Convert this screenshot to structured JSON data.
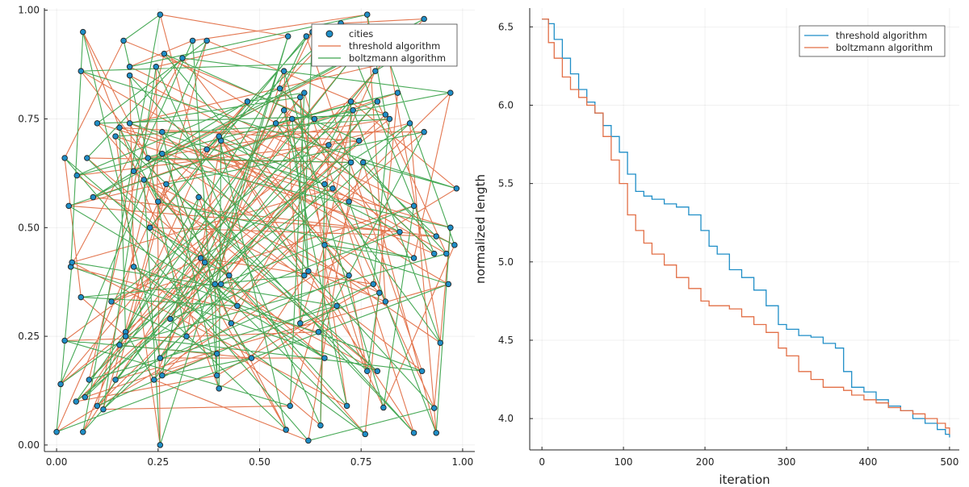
{
  "chart_data": [
    {
      "type": "scatter",
      "panel": "left",
      "title": "",
      "xlabel": "",
      "ylabel": "",
      "xlim": [
        -0.03,
        1.03
      ],
      "ylim": [
        -0.015,
        1.005
      ],
      "xticks": [
        0.0,
        0.25,
        0.5,
        0.75,
        1.0
      ],
      "xtick_labels": [
        "0.00",
        "0.25",
        "0.50",
        "0.75",
        "1.00"
      ],
      "yticks": [
        0.0,
        0.25,
        0.5,
        0.75,
        1.0
      ],
      "ytick_labels": [
        "0.00",
        "0.25",
        "0.50",
        "0.75",
        "1.00"
      ],
      "grid": true,
      "legend_position": "top-right",
      "legend": [
        "cities",
        "threshold algorithm",
        "boltzmann algorithm"
      ],
      "colors": {
        "cities": "#1f8ec7",
        "threshold": "#e26f46",
        "boltzmann": "#3da44d"
      },
      "cities": [
        [
          0.0,
          0.03
        ],
        [
          0.065,
          0.03
        ],
        [
          0.255,
          0.0
        ],
        [
          0.62,
          0.01
        ],
        [
          0.565,
          0.035
        ],
        [
          0.65,
          0.045
        ],
        [
          0.76,
          0.025
        ],
        [
          0.88,
          0.028
        ],
        [
          0.935,
          0.028
        ],
        [
          0.1,
          0.09
        ],
        [
          0.115,
          0.082
        ],
        [
          0.048,
          0.1
        ],
        [
          0.07,
          0.11
        ],
        [
          0.08,
          0.15
        ],
        [
          0.145,
          0.15
        ],
        [
          0.01,
          0.14
        ],
        [
          0.24,
          0.15
        ],
        [
          0.26,
          0.16
        ],
        [
          0.395,
          0.16
        ],
        [
          0.4,
          0.13
        ],
        [
          0.575,
          0.09
        ],
        [
          0.715,
          0.09
        ],
        [
          0.805,
          0.086
        ],
        [
          0.93,
          0.085
        ],
        [
          0.765,
          0.17
        ],
        [
          0.79,
          0.17
        ],
        [
          0.9,
          0.17
        ],
        [
          0.945,
          0.235
        ],
        [
          0.02,
          0.24
        ],
        [
          0.155,
          0.23
        ],
        [
          0.17,
          0.26
        ],
        [
          0.17,
          0.25
        ],
        [
          0.255,
          0.2
        ],
        [
          0.32,
          0.25
        ],
        [
          0.395,
          0.21
        ],
        [
          0.48,
          0.2
        ],
        [
          0.66,
          0.2
        ],
        [
          0.645,
          0.26
        ],
        [
          0.6,
          0.28
        ],
        [
          0.28,
          0.29
        ],
        [
          0.43,
          0.28
        ],
        [
          0.445,
          0.32
        ],
        [
          0.135,
          0.33
        ],
        [
          0.06,
          0.34
        ],
        [
          0.81,
          0.33
        ],
        [
          0.69,
          0.32
        ],
        [
          0.78,
          0.37
        ],
        [
          0.795,
          0.35
        ],
        [
          0.965,
          0.37
        ],
        [
          0.72,
          0.39
        ],
        [
          0.035,
          0.41
        ],
        [
          0.038,
          0.42
        ],
        [
          0.19,
          0.41
        ],
        [
          0.355,
          0.43
        ],
        [
          0.365,
          0.42
        ],
        [
          0.39,
          0.37
        ],
        [
          0.405,
          0.37
        ],
        [
          0.425,
          0.39
        ],
        [
          0.61,
          0.39
        ],
        [
          0.62,
          0.4
        ],
        [
          0.66,
          0.46
        ],
        [
          0.88,
          0.43
        ],
        [
          0.93,
          0.44
        ],
        [
          0.935,
          0.48
        ],
        [
          0.97,
          0.5
        ],
        [
          0.98,
          0.46
        ],
        [
          0.96,
          0.44
        ],
        [
          0.845,
          0.49
        ],
        [
          0.88,
          0.55
        ],
        [
          0.985,
          0.59
        ],
        [
          0.03,
          0.55
        ],
        [
          0.09,
          0.57
        ],
        [
          0.23,
          0.5
        ],
        [
          0.25,
          0.56
        ],
        [
          0.35,
          0.57
        ],
        [
          0.66,
          0.6
        ],
        [
          0.68,
          0.59
        ],
        [
          0.72,
          0.56
        ],
        [
          0.725,
          0.65
        ],
        [
          0.755,
          0.65
        ],
        [
          0.67,
          0.69
        ],
        [
          0.745,
          0.7
        ],
        [
          0.58,
          0.75
        ],
        [
          0.635,
          0.75
        ],
        [
          0.54,
          0.74
        ],
        [
          0.05,
          0.62
        ],
        [
          0.02,
          0.66
        ],
        [
          0.075,
          0.66
        ],
        [
          0.19,
          0.63
        ],
        [
          0.215,
          0.61
        ],
        [
          0.225,
          0.66
        ],
        [
          0.26,
          0.67
        ],
        [
          0.27,
          0.6
        ],
        [
          0.37,
          0.68
        ],
        [
          0.405,
          0.7
        ],
        [
          0.4,
          0.71
        ],
        [
          0.1,
          0.74
        ],
        [
          0.145,
          0.71
        ],
        [
          0.155,
          0.73
        ],
        [
          0.18,
          0.74
        ],
        [
          0.26,
          0.72
        ],
        [
          0.47,
          0.79
        ],
        [
          0.55,
          0.82
        ],
        [
          0.56,
          0.77
        ],
        [
          0.6,
          0.8
        ],
        [
          0.61,
          0.81
        ],
        [
          0.725,
          0.79
        ],
        [
          0.73,
          0.77
        ],
        [
          0.79,
          0.79
        ],
        [
          0.81,
          0.76
        ],
        [
          0.82,
          0.75
        ],
        [
          0.84,
          0.81
        ],
        [
          0.87,
          0.74
        ],
        [
          0.905,
          0.72
        ],
        [
          0.97,
          0.81
        ],
        [
          0.06,
          0.86
        ],
        [
          0.18,
          0.85
        ],
        [
          0.18,
          0.87
        ],
        [
          0.245,
          0.87
        ],
        [
          0.265,
          0.9
        ],
        [
          0.31,
          0.89
        ],
        [
          0.335,
          0.93
        ],
        [
          0.37,
          0.93
        ],
        [
          0.56,
          0.86
        ],
        [
          0.57,
          0.94
        ],
        [
          0.615,
          0.94
        ],
        [
          0.63,
          0.95
        ],
        [
          0.72,
          0.88
        ],
        [
          0.785,
          0.86
        ],
        [
          0.82,
          0.88
        ],
        [
          0.065,
          0.95
        ],
        [
          0.165,
          0.93
        ],
        [
          0.255,
          0.99
        ],
        [
          0.7,
          0.97
        ],
        [
          0.765,
          0.99
        ],
        [
          0.905,
          0.98
        ]
      ]
    },
    {
      "type": "line",
      "panel": "right",
      "title": "",
      "xlabel": "iteration",
      "ylabel": "normalized length",
      "xlim": [
        -15,
        512
      ],
      "ylim": [
        3.8,
        6.62
      ],
      "xticks": [
        0,
        100,
        200,
        300,
        400,
        500
      ],
      "xtick_labels": [
        "0",
        "100",
        "200",
        "300",
        "400",
        "500"
      ],
      "yticks": [
        4.0,
        4.5,
        5.0,
        5.5,
        6.0,
        6.5
      ],
      "ytick_labels": [
        "4.0",
        "4.5",
        "5.0",
        "5.5",
        "6.0",
        "6.5"
      ],
      "grid": true,
      "legend_position": "top-right",
      "step": true,
      "series": [
        {
          "name": "threshold algorithm",
          "color": "#1f8ec7",
          "x": [
            0,
            8,
            15,
            25,
            35,
            45,
            55,
            65,
            75,
            85,
            95,
            105,
            115,
            125,
            135,
            150,
            165,
            180,
            195,
            205,
            215,
            230,
            245,
            260,
            275,
            290,
            300,
            315,
            330,
            345,
            360,
            370,
            380,
            395,
            410,
            425,
            440,
            455,
            470,
            485,
            495,
            500
          ],
          "values": [
            6.55,
            6.52,
            6.42,
            6.3,
            6.2,
            6.1,
            6.02,
            5.95,
            5.87,
            5.8,
            5.7,
            5.56,
            5.45,
            5.42,
            5.4,
            5.37,
            5.35,
            5.3,
            5.2,
            5.1,
            5.05,
            4.95,
            4.9,
            4.82,
            4.72,
            4.6,
            4.57,
            4.53,
            4.52,
            4.48,
            4.45,
            4.3,
            4.2,
            4.17,
            4.12,
            4.08,
            4.05,
            4.0,
            3.97,
            3.93,
            3.9,
            3.88
          ]
        },
        {
          "name": "boltzmann algorithm",
          "color": "#e26f46",
          "x": [
            0,
            8,
            15,
            25,
            35,
            45,
            55,
            65,
            75,
            85,
            95,
            105,
            115,
            125,
            135,
            150,
            165,
            180,
            195,
            205,
            215,
            230,
            245,
            260,
            275,
            290,
            300,
            315,
            330,
            345,
            360,
            370,
            380,
            395,
            410,
            425,
            440,
            455,
            470,
            485,
            495,
            500
          ],
          "values": [
            6.55,
            6.4,
            6.3,
            6.18,
            6.1,
            6.05,
            6.0,
            5.95,
            5.8,
            5.65,
            5.5,
            5.3,
            5.2,
            5.12,
            5.05,
            4.98,
            4.9,
            4.83,
            4.75,
            4.72,
            4.72,
            4.7,
            4.65,
            4.6,
            4.55,
            4.45,
            4.4,
            4.3,
            4.25,
            4.2,
            4.2,
            4.18,
            4.15,
            4.12,
            4.1,
            4.07,
            4.05,
            4.03,
            4.0,
            3.97,
            3.94,
            3.9
          ]
        }
      ]
    }
  ]
}
